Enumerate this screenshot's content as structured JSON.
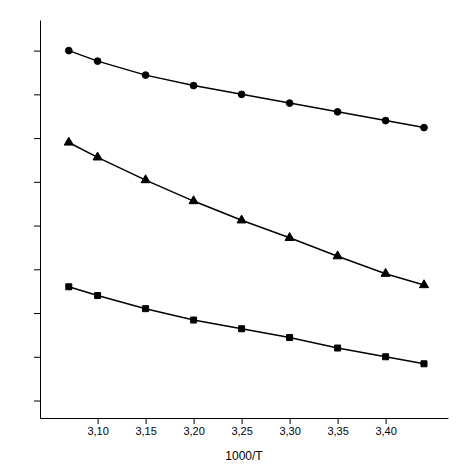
{
  "chart_data": {
    "type": "line",
    "xlabel": "1000/T",
    "x": [
      3.07,
      3.1,
      3.15,
      3.2,
      3.25,
      3.3,
      3.35,
      3.4,
      3.44
    ],
    "series": [
      {
        "marker": "circle",
        "color": "#000000",
        "values": [
          -0.5,
          -0.62,
          -0.78,
          -0.9,
          -1.0,
          -1.1,
          -1.2,
          -1.3,
          -1.38
        ]
      },
      {
        "marker": "triangle",
        "color": "#000000",
        "values": [
          -1.55,
          -1.72,
          -1.98,
          -2.22,
          -2.44,
          -2.64,
          -2.85,
          -3.05,
          -3.18
        ]
      },
      {
        "marker": "square",
        "color": "#000000",
        "values": [
          -3.2,
          -3.3,
          -3.45,
          -3.58,
          -3.68,
          -3.78,
          -3.9,
          -4.0,
          -4.08
        ]
      }
    ],
    "xlim": [
      3.04,
      3.465
    ],
    "xticks": [
      {
        "value": 3.1,
        "label": "3,10"
      },
      {
        "value": 3.15,
        "label": "3,15"
      },
      {
        "value": 3.2,
        "label": "3,20"
      },
      {
        "value": 3.25,
        "label": "3,25"
      },
      {
        "value": 3.3,
        "label": "3,30"
      },
      {
        "value": 3.35,
        "label": "3,35"
      },
      {
        "value": 3.4,
        "label": "3,40"
      }
    ],
    "ylim": [
      -4.7,
      -0.15
    ],
    "yticks": [
      -0.5,
      -1.0,
      -1.5,
      -2.0,
      -2.5,
      -3.0,
      -3.5,
      -4.0,
      -4.5
    ],
    "tick_labels": "x",
    "grid": false
  }
}
